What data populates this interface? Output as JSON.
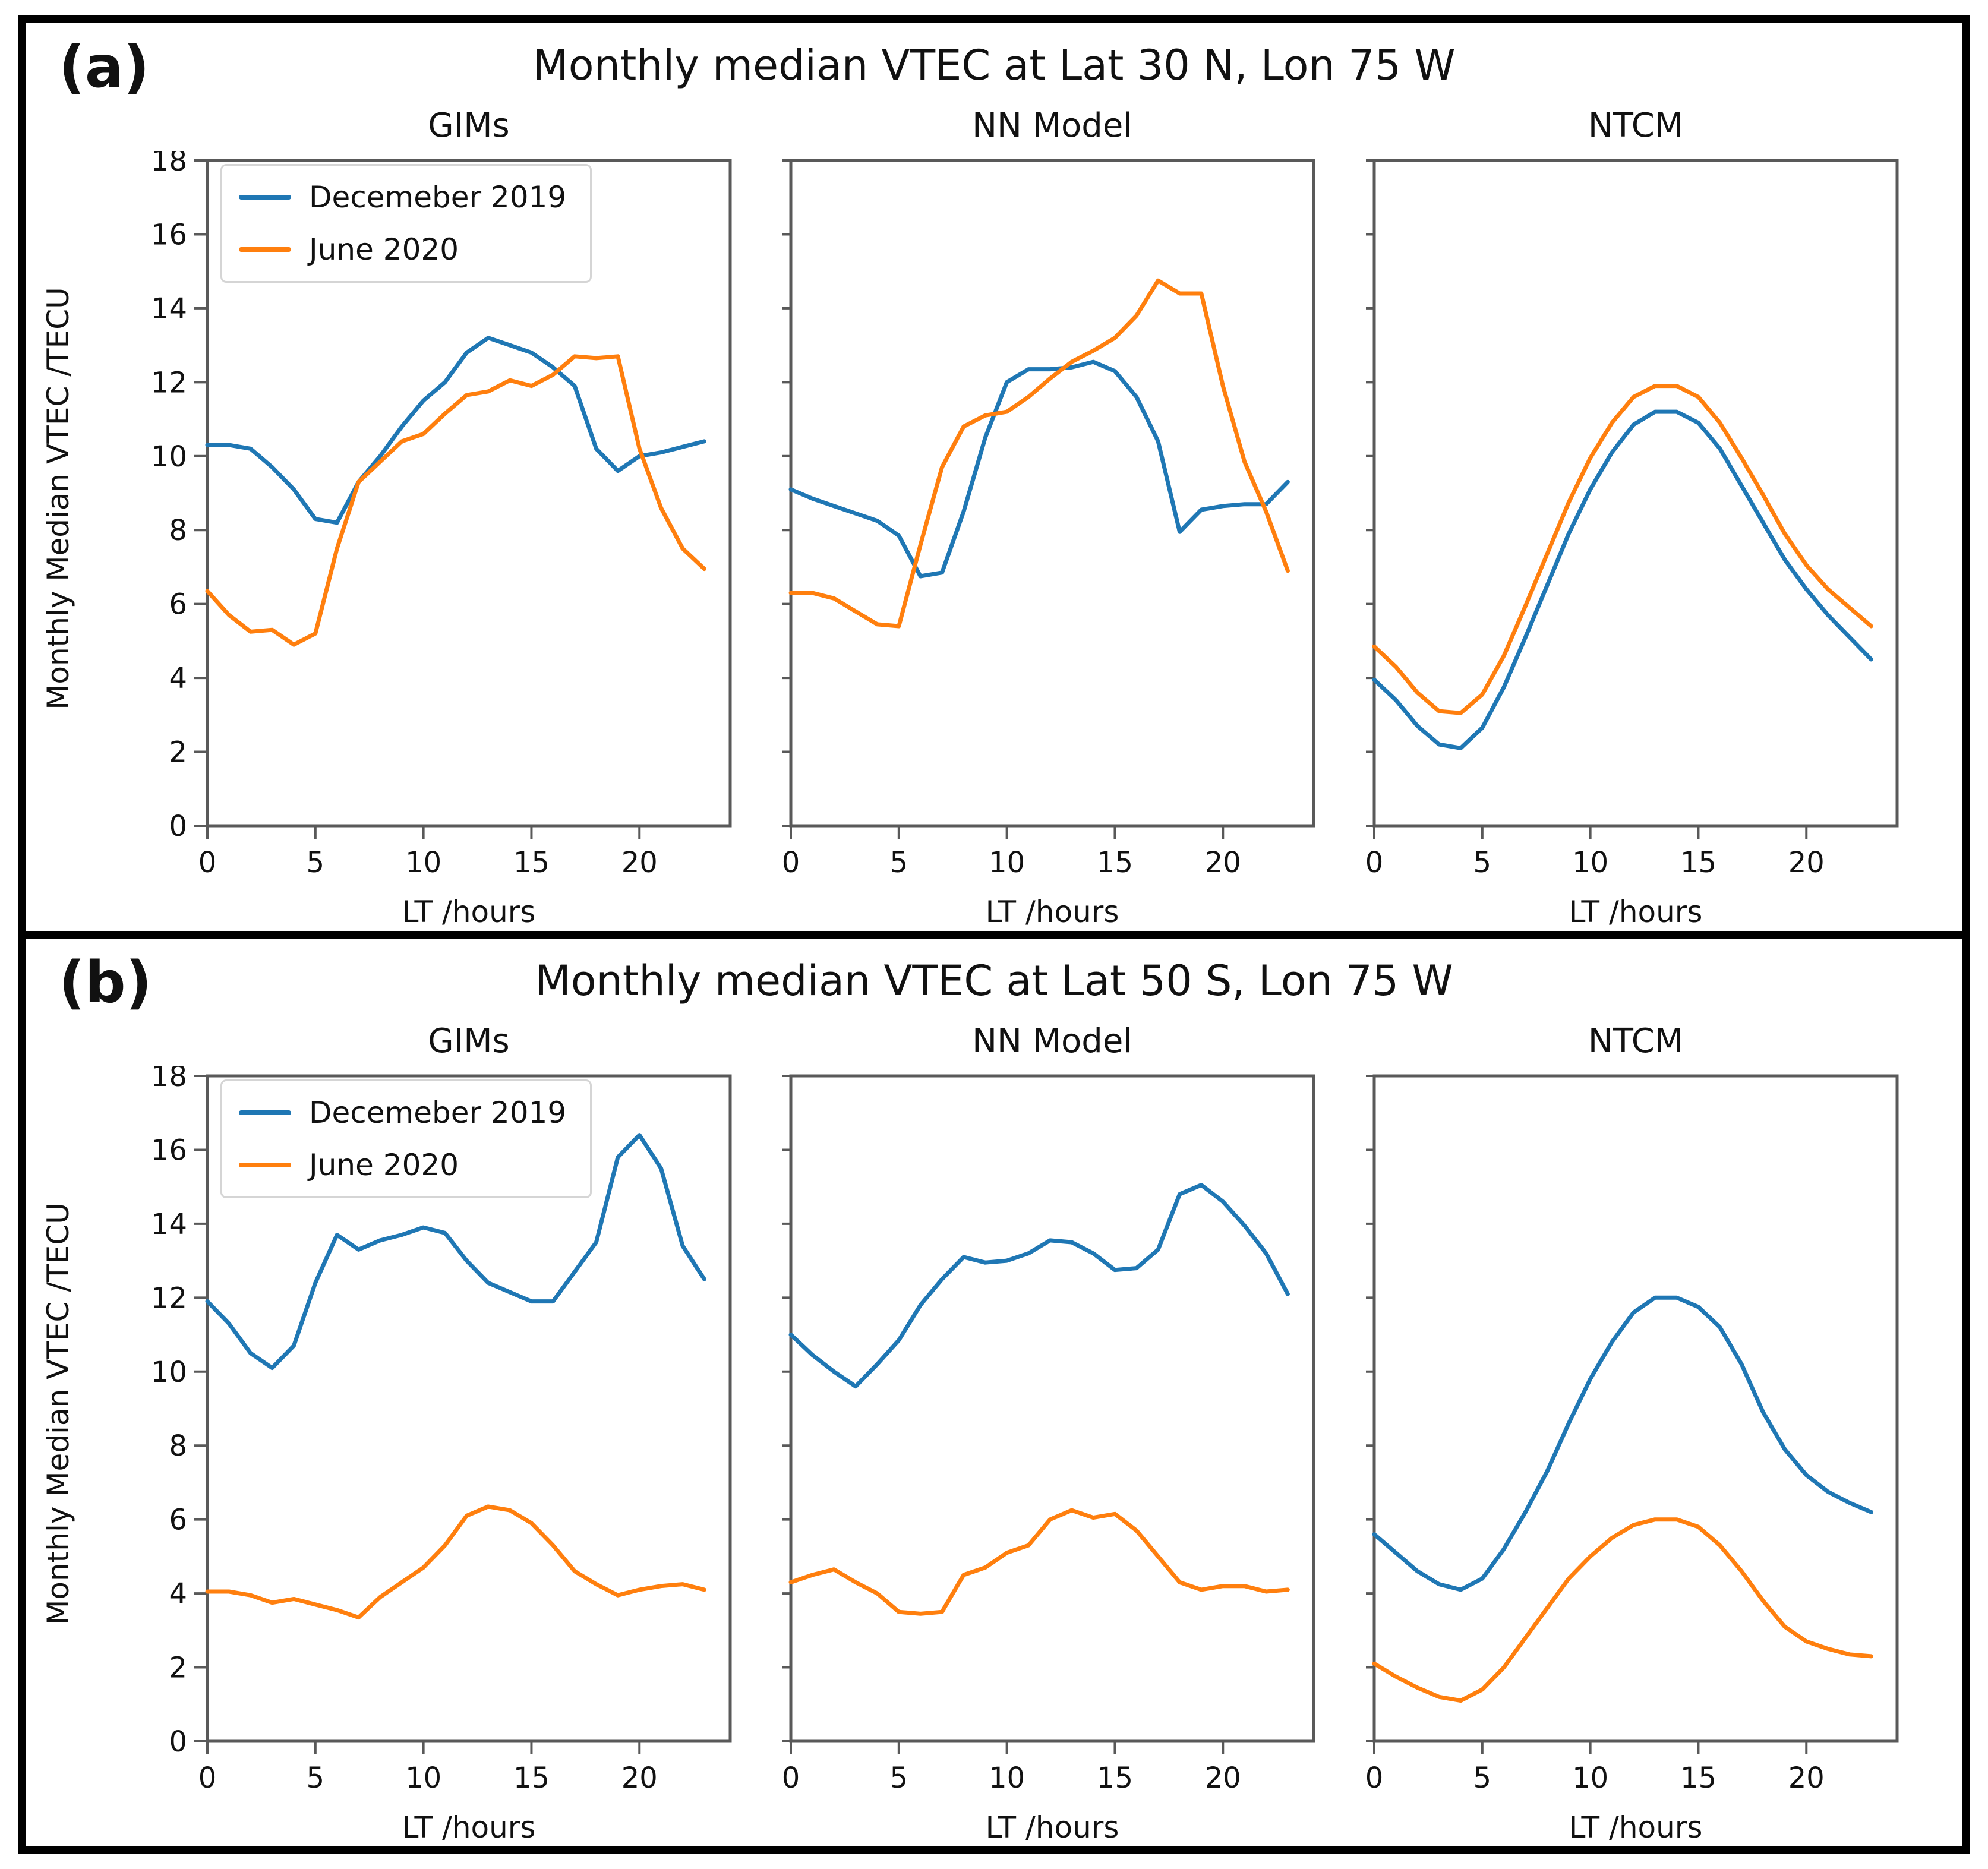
{
  "colors": {
    "december": "#1f77b4",
    "june": "#ff7f0e",
    "axis": "#595959",
    "tick_text": "#111111"
  },
  "chart_data": [
    {
      "type": "line",
      "panel_label": "(a)",
      "title": "Monthly median VTEC at Lat 30 N, Lon 75 W",
      "xlabel": "LT /hours",
      "ylabel": "Monthly Median VTEC /TECU",
      "x": [
        0,
        1,
        2,
        3,
        4,
        5,
        6,
        7,
        8,
        9,
        10,
        11,
        12,
        13,
        14,
        15,
        16,
        17,
        18,
        19,
        20,
        21,
        22,
        23
      ],
      "xlim": [
        0,
        24.2
      ],
      "ylim": [
        0,
        18
      ],
      "xticks": [
        0,
        5,
        10,
        15,
        20
      ],
      "yticks": [
        0,
        2,
        4,
        6,
        8,
        10,
        12,
        14,
        16,
        18
      ],
      "grid": false,
      "legend_position": "upper left",
      "subplots": [
        {
          "title": "GIMs",
          "y_tick_labels": true,
          "legend": true,
          "series": [
            {
              "name": "Decemeber 2019",
              "color": "#1f77b4",
              "values": [
                10.3,
                10.3,
                10.2,
                9.7,
                9.1,
                8.3,
                8.2,
                9.3,
                10.0,
                10.8,
                11.5,
                12.0,
                12.8,
                13.2,
                13.0,
                12.8,
                12.4,
                11.9,
                10.2,
                9.6,
                10.0,
                10.1,
                10.25,
                10.4
              ]
            },
            {
              "name": "June 2020",
              "color": "#ff7f0e",
              "values": [
                6.35,
                5.7,
                5.25,
                5.3,
                4.9,
                5.2,
                7.5,
                9.3,
                9.85,
                10.4,
                10.6,
                11.15,
                11.65,
                11.75,
                12.05,
                11.9,
                12.2,
                12.7,
                12.65,
                12.7,
                10.2,
                8.6,
                7.5,
                6.95
              ]
            }
          ]
        },
        {
          "title": "NN Model",
          "y_tick_labels": false,
          "legend": false,
          "series": [
            {
              "name": "Decemeber 2019",
              "color": "#1f77b4",
              "values": [
                9.1,
                8.85,
                8.65,
                8.45,
                8.25,
                7.85,
                6.75,
                6.85,
                8.5,
                10.5,
                12.0,
                12.35,
                12.35,
                12.4,
                12.55,
                12.3,
                11.6,
                10.4,
                7.95,
                8.55,
                8.65,
                8.7,
                8.7,
                9.3
              ]
            },
            {
              "name": "June 2020",
              "color": "#ff7f0e",
              "values": [
                6.3,
                6.3,
                6.15,
                5.8,
                5.45,
                5.4,
                7.6,
                9.7,
                10.8,
                11.1,
                11.2,
                11.6,
                12.1,
                12.55,
                12.85,
                13.2,
                13.8,
                14.75,
                14.4,
                14.4,
                11.9,
                9.85,
                8.5,
                6.9
              ]
            }
          ]
        },
        {
          "title": "NTCM",
          "y_tick_labels": false,
          "legend": false,
          "series": [
            {
              "name": "Decemeber 2019",
              "color": "#1f77b4",
              "values": [
                3.95,
                3.4,
                2.7,
                2.2,
                2.1,
                2.65,
                3.75,
                5.1,
                6.5,
                7.9,
                9.1,
                10.1,
                10.85,
                11.2,
                11.2,
                10.9,
                10.2,
                9.2,
                8.2,
                7.2,
                6.4,
                5.7,
                5.1,
                4.5
              ]
            },
            {
              "name": "June 2020",
              "color": "#ff7f0e",
              "values": [
                4.85,
                4.3,
                3.6,
                3.1,
                3.05,
                3.55,
                4.6,
                5.95,
                7.35,
                8.75,
                9.95,
                10.9,
                11.6,
                11.9,
                11.9,
                11.6,
                10.9,
                9.95,
                8.95,
                7.9,
                7.05,
                6.4,
                5.9,
                5.4
              ]
            }
          ]
        }
      ]
    },
    {
      "type": "line",
      "panel_label": "(b)",
      "title": "Monthly median VTEC at Lat 50 S, Lon 75 W",
      "xlabel": "LT /hours",
      "ylabel": "Monthly Median VTEC /TECU",
      "x": [
        0,
        1,
        2,
        3,
        4,
        5,
        6,
        7,
        8,
        9,
        10,
        11,
        12,
        13,
        14,
        15,
        16,
        17,
        18,
        19,
        20,
        21,
        22,
        23
      ],
      "xlim": [
        0,
        24.2
      ],
      "ylim": [
        0,
        18
      ],
      "xticks": [
        0,
        5,
        10,
        15,
        20
      ],
      "yticks": [
        0,
        2,
        4,
        6,
        8,
        10,
        12,
        14,
        16,
        18
      ],
      "grid": false,
      "legend_position": "upper left",
      "subplots": [
        {
          "title": "GIMs",
          "y_tick_labels": true,
          "legend": true,
          "series": [
            {
              "name": "Decemeber 2019",
              "color": "#1f77b4",
              "values": [
                11.9,
                11.3,
                10.5,
                10.1,
                10.7,
                12.4,
                13.7,
                13.3,
                13.55,
                13.7,
                13.9,
                13.75,
                13.0,
                12.4,
                12.15,
                11.9,
                11.9,
                12.7,
                13.5,
                15.8,
                16.4,
                15.5,
                13.4,
                12.5
              ]
            },
            {
              "name": "June 2020",
              "color": "#ff7f0e",
              "values": [
                4.05,
                4.05,
                3.95,
                3.75,
                3.85,
                3.7,
                3.55,
                3.35,
                3.9,
                4.3,
                4.7,
                5.3,
                6.1,
                6.35,
                6.25,
                5.9,
                5.3,
                4.6,
                4.25,
                3.95,
                4.1,
                4.2,
                4.25,
                4.1
              ]
            }
          ]
        },
        {
          "title": "NN Model",
          "y_tick_labels": false,
          "legend": false,
          "series": [
            {
              "name": "Decemeber 2019",
              "color": "#1f77b4",
              "values": [
                11.0,
                10.45,
                10.0,
                9.6,
                10.2,
                10.85,
                11.8,
                12.5,
                13.1,
                12.95,
                13.0,
                13.2,
                13.55,
                13.5,
                13.2,
                12.75,
                12.8,
                13.3,
                14.8,
                15.05,
                14.6,
                13.95,
                13.2,
                12.1
              ]
            },
            {
              "name": "June 2020",
              "color": "#ff7f0e",
              "values": [
                4.3,
                4.5,
                4.65,
                4.3,
                4.0,
                3.5,
                3.45,
                3.5,
                4.5,
                4.7,
                5.1,
                5.3,
                6.0,
                6.25,
                6.05,
                6.15,
                5.7,
                5.0,
                4.3,
                4.1,
                4.2,
                4.2,
                4.05,
                4.1
              ]
            }
          ]
        },
        {
          "title": "NTCM",
          "y_tick_labels": false,
          "legend": false,
          "series": [
            {
              "name": "Decemeber 2019",
              "color": "#1f77b4",
              "values": [
                5.6,
                5.1,
                4.6,
                4.25,
                4.1,
                4.4,
                5.2,
                6.2,
                7.3,
                8.6,
                9.8,
                10.8,
                11.6,
                12.0,
                12.0,
                11.75,
                11.2,
                10.2,
                8.9,
                7.9,
                7.2,
                6.75,
                6.45,
                6.2
              ]
            },
            {
              "name": "June 2020",
              "color": "#ff7f0e",
              "values": [
                2.1,
                1.75,
                1.45,
                1.2,
                1.1,
                1.4,
                2.0,
                2.8,
                3.6,
                4.4,
                5.0,
                5.5,
                5.85,
                6.0,
                6.0,
                5.8,
                5.3,
                4.6,
                3.8,
                3.1,
                2.7,
                2.5,
                2.35,
                2.3
              ]
            }
          ]
        }
      ]
    }
  ]
}
